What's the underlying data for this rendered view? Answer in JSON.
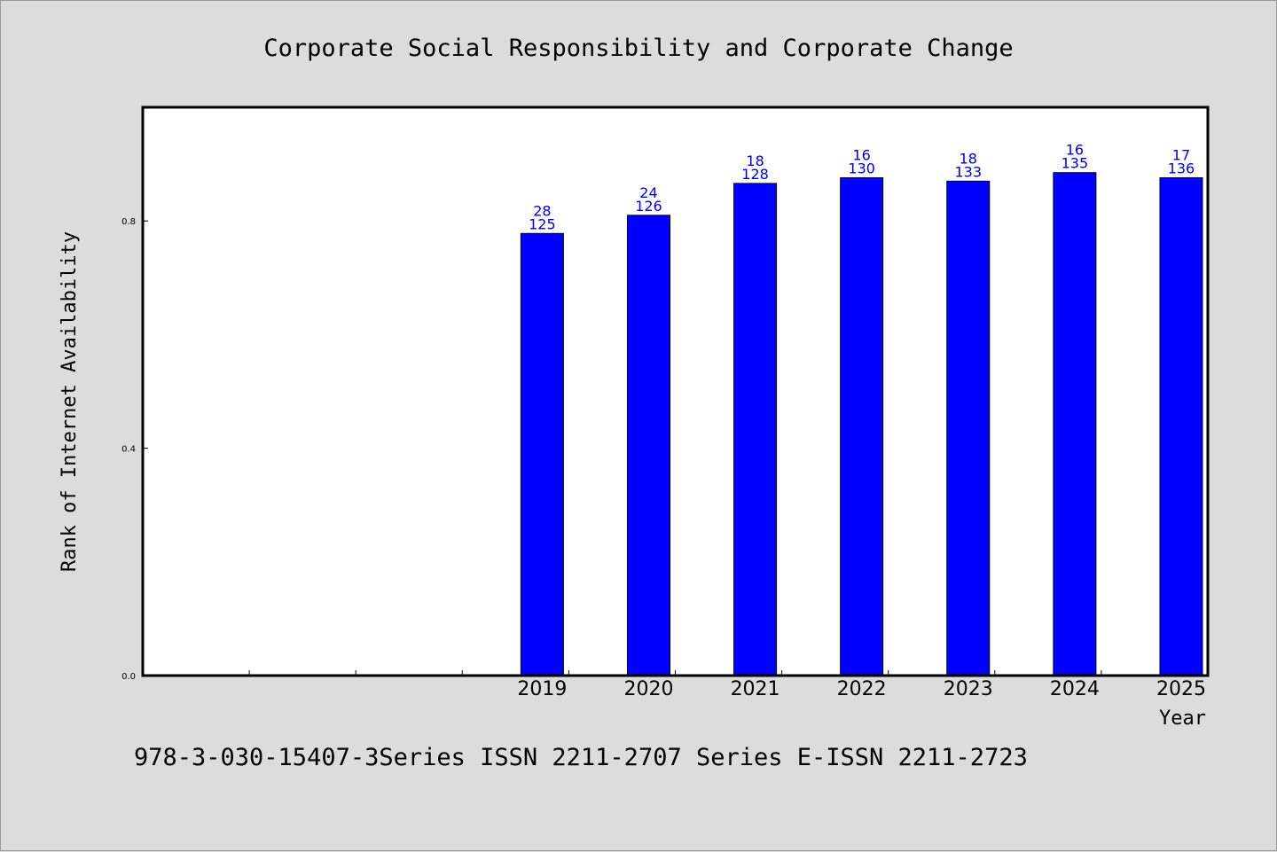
{
  "chart_data": {
    "type": "bar",
    "title": "Corporate Social Responsibility and Corporate Change",
    "xlabel": "Year",
    "ylabel": "Rank of Internet Availability",
    "categories": [
      "",
      "",
      "",
      "2019",
      "2020",
      "2021",
      "2022",
      "2023",
      "2024",
      "2025"
    ],
    "values": [
      null,
      null,
      null,
      0.778,
      0.81,
      0.866,
      0.876,
      0.87,
      0.885,
      0.876
    ],
    "data_labels": [
      [
        "",
        ""
      ],
      [
        "",
        ""
      ],
      [
        "",
        ""
      ],
      [
        "28",
        "125"
      ],
      [
        "24",
        "126"
      ],
      [
        "18",
        "128"
      ],
      [
        "16",
        "130"
      ],
      [
        "18",
        "133"
      ],
      [
        "16",
        "135"
      ],
      [
        "17",
        "136"
      ]
    ],
    "yticks": [
      0.0,
      0.4,
      0.8
    ],
    "ytick_labels": [
      "0.0",
      "0.4",
      "0.8"
    ],
    "ylim": [
      0,
      1.0
    ],
    "grid": false,
    "bar_color": "#0000ff",
    "label_color": "#0000cc"
  },
  "footer": "978-3-030-15407-3Series ISSN 2211-2707 Series E-ISSN 2211-2723"
}
